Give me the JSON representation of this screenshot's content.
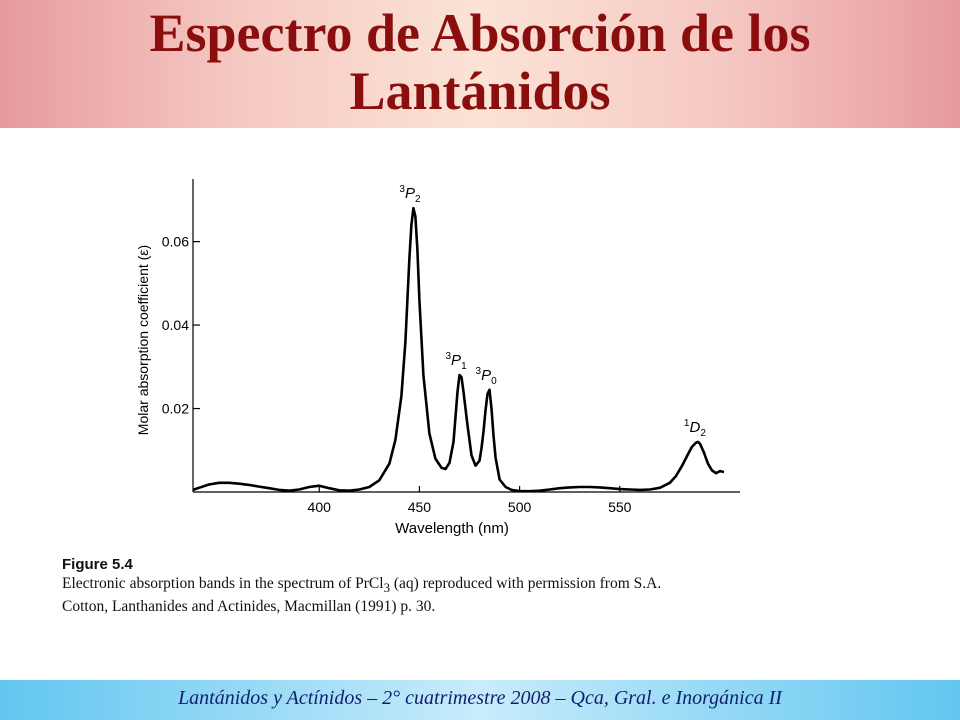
{
  "header": {
    "title_line1": "Espectro de Absorción de los",
    "title_line2": "Lantánidos"
  },
  "chart_data": {
    "type": "line",
    "xlabel": "Wavelength (nm)",
    "ylabel": "Molar absorption coefficient (ε)",
    "xlim": [
      337,
      610
    ],
    "ylim": [
      0,
      0.075
    ],
    "x_ticks": [
      400,
      450,
      500,
      550
    ],
    "y_ticks": [
      0.02,
      0.04,
      0.06
    ],
    "x_tick_labels": [
      "400",
      "450",
      "500",
      "550"
    ],
    "y_tick_labels": [
      "0.02",
      "0.04",
      "0.06"
    ],
    "grid": false,
    "series": [
      {
        "x": [
          337,
          340,
          345,
          350,
          355,
          360,
          365,
          370,
          375,
          380,
          385,
          390,
          395,
          400,
          405,
          410,
          415,
          420,
          425,
          430,
          435,
          438,
          441,
          443,
          444,
          445,
          446,
          447,
          448,
          449,
          450,
          452,
          455,
          458,
          461,
          463,
          465,
          467,
          468,
          469,
          470,
          471,
          472,
          474,
          476,
          478,
          480,
          481,
          482,
          483,
          484,
          485,
          486,
          487,
          488,
          490,
          493,
          496,
          500,
          505,
          510,
          515,
          520,
          525,
          530,
          535,
          540,
          545,
          550,
          555,
          560,
          565,
          570,
          575,
          578,
          581,
          584,
          586,
          588,
          589,
          590,
          592,
          594,
          596,
          598,
          600,
          602
        ],
        "y": [
          0.0005,
          0.001,
          0.0018,
          0.0022,
          0.0022,
          0.002,
          0.0017,
          0.0013,
          0.0009,
          0.0005,
          0.0003,
          0.0006,
          0.0012,
          0.0015,
          0.0009,
          0.0004,
          0.0003,
          0.0006,
          0.0012,
          0.0028,
          0.0068,
          0.0125,
          0.023,
          0.036,
          0.046,
          0.056,
          0.064,
          0.068,
          0.066,
          0.058,
          0.046,
          0.028,
          0.014,
          0.008,
          0.0058,
          0.0055,
          0.007,
          0.012,
          0.018,
          0.024,
          0.028,
          0.0275,
          0.024,
          0.016,
          0.0088,
          0.0063,
          0.0075,
          0.0105,
          0.0145,
          0.0195,
          0.0235,
          0.0245,
          0.02,
          0.0135,
          0.0082,
          0.003,
          0.0012,
          0.0005,
          0.0002,
          0.0002,
          0.0003,
          0.0006,
          0.0009,
          0.0011,
          0.0012,
          0.0012,
          0.0011,
          0.0009,
          0.0007,
          0.0006,
          0.0005,
          0.0006,
          0.001,
          0.0022,
          0.0038,
          0.0062,
          0.009,
          0.0108,
          0.0118,
          0.012,
          0.0116,
          0.0095,
          0.0068,
          0.0052,
          0.0045,
          0.005,
          0.0048
        ]
      }
    ],
    "peak_labels": [
      {
        "sup": "3",
        "letter": "P",
        "sub": "2",
        "x": 447,
        "y": 0.068
      },
      {
        "sup": "3",
        "letter": "P",
        "sub": "1",
        "x": 470,
        "y": 0.028
      },
      {
        "sup": "3",
        "letter": "P",
        "sub": "0",
        "x": 485,
        "y": 0.0245
      },
      {
        "sup": "1",
        "letter": "D",
        "sub": "2",
        "x": 589,
        "y": 0.012
      }
    ]
  },
  "caption": {
    "figure_label": "Figure 5.4",
    "line1_pre": "Electronic absorption bands in the spectrum of PrCl",
    "line1_sub": "3",
    "line1_post": " (aq) reproduced with permission from S.A.",
    "line2": "Cotton, Lanthanides and Actinides, Macmillan (1991) p. 30."
  },
  "footer": {
    "text": "Lantánidos y Actínidos – 2° cuatrimestre 2008 – Qca, Gral. e Inorgánica II"
  }
}
